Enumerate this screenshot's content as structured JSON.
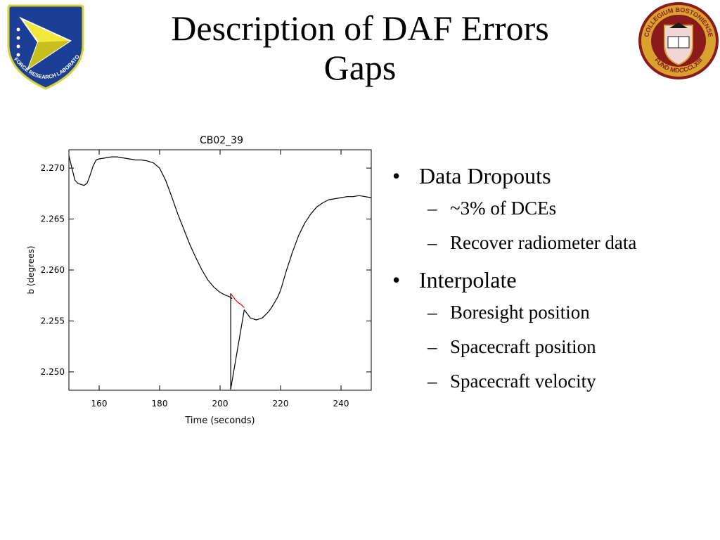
{
  "slide": {
    "title_line1": "Description of DAF Errors",
    "title_line2": "Gaps"
  },
  "logos": {
    "left": {
      "name": "air-force-research-laboratory-logo",
      "text": "AIR FORCE RESEARCH LABORATORY",
      "colors": {
        "blue": "#1b3f94",
        "yellow": "#f2e83a",
        "white": "#ffffff"
      }
    },
    "right": {
      "name": "boston-college-seal",
      "text_top": "COLLEGIUM BOSTONIENSE",
      "text_bottom": "FUND MDCCCLXIII",
      "colors": {
        "maroon": "#8b1a1a",
        "gold": "#d9a12e"
      }
    }
  },
  "bullets": [
    {
      "level": 1,
      "marker": "•",
      "text": "Data Dropouts"
    },
    {
      "level": 2,
      "marker": "–",
      "text": "~3% of DCEs"
    },
    {
      "level": 2,
      "marker": "–",
      "text": "Recover radiometer data"
    },
    {
      "level": 1,
      "marker": "•",
      "text": "Interpolate"
    },
    {
      "level": 2,
      "marker": "–",
      "text": "Boresight position"
    },
    {
      "level": 2,
      "marker": "–",
      "text": "Spacecraft position"
    },
    {
      "level": 2,
      "marker": "–",
      "text": "Spacecraft velocity"
    }
  ],
  "chart_data": {
    "type": "line",
    "title": "CB02_39",
    "xlabel": "Time (seconds)",
    "ylabel": "b (degrees)",
    "xlim": [
      150,
      250
    ],
    "ylim": [
      2.2482,
      2.2718
    ],
    "xticks": [
      160,
      180,
      200,
      220,
      240
    ],
    "yticks": [
      2.25,
      2.255,
      2.26,
      2.265,
      2.27
    ],
    "xtick_labels": [
      "160",
      "180",
      "200",
      "220",
      "240"
    ],
    "ytick_labels": [
      "2.250",
      "2.255",
      "2.260",
      "2.265",
      "2.270"
    ],
    "grid": false,
    "colors": {
      "signal": "#000000",
      "interpolation": "#ff0000"
    },
    "series": [
      {
        "x": [
          150,
          151,
          152,
          153,
          154,
          155,
          156,
          157,
          158,
          159,
          160,
          162,
          164,
          166,
          168,
          170,
          172,
          174,
          176,
          178,
          180,
          182,
          184,
          186,
          188,
          190,
          192,
          194,
          196,
          198,
          200,
          202,
          203,
          204
        ],
        "values": [
          2.2712,
          2.27,
          2.2688,
          2.2685,
          2.2684,
          2.2683,
          2.2685,
          2.2693,
          2.2702,
          2.2708,
          2.2709,
          2.271,
          2.2711,
          2.2711,
          2.271,
          2.2709,
          2.2708,
          2.2708,
          2.2707,
          2.2705,
          2.27,
          2.2688,
          2.2672,
          2.2655,
          2.264,
          2.2625,
          2.2612,
          2.26,
          2.259,
          2.2583,
          2.2578,
          2.2575,
          2.2574,
          2.2572
        ]
      },
      {
        "x": [
          203.5,
          204,
          205,
          206,
          207,
          208
        ],
        "values": [
          2.2577,
          2.2575,
          2.2571,
          2.2568,
          2.2566,
          2.2563
        ]
      },
      {
        "x": [
          203.5,
          203.5,
          208
        ],
        "values": [
          2.2577,
          2.2483,
          2.2561
        ]
      },
      {
        "x": [
          208,
          209,
          210,
          211,
          212,
          213,
          214,
          215,
          216,
          217,
          218,
          219,
          220,
          222,
          224,
          226,
          228,
          230,
          232,
          234,
          236,
          238,
          240,
          242,
          244,
          246,
          248,
          250
        ],
        "values": [
          2.2561,
          2.2557,
          2.2553,
          2.2552,
          2.2551,
          2.2552,
          2.2553,
          2.2556,
          2.2559,
          2.2563,
          2.2568,
          2.2573,
          2.258,
          2.26,
          2.2618,
          2.2634,
          2.2646,
          2.2655,
          2.2662,
          2.2666,
          2.2669,
          2.267,
          2.2671,
          2.2672,
          2.2672,
          2.2673,
          2.2672,
          2.2671
        ]
      }
    ]
  }
}
